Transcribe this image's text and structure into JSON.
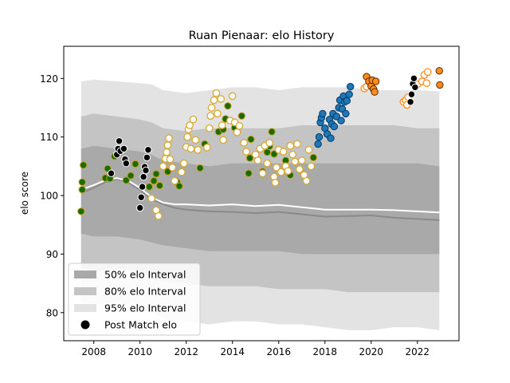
{
  "chart_data": {
    "type": "scatter",
    "title": "Ruan Pienaar: elo History",
    "xlabel": "",
    "ylabel": "elo score",
    "xlim": [
      2006.7,
      2023.8
    ],
    "ylim": [
      75.2,
      125.5
    ],
    "xticks": [
      2008,
      2010,
      2012,
      2014,
      2016,
      2018,
      2020,
      2022
    ],
    "yticks": [
      80,
      90,
      100,
      110,
      120
    ],
    "grid": false,
    "legend": {
      "placement": "lower-left",
      "entries": [
        {
          "label": "50% elo Interval",
          "color": "#a9a9a9",
          "kind": "band"
        },
        {
          "label": "80% elo Interval",
          "color": "#c4c4c4",
          "kind": "band"
        },
        {
          "label": "95% elo Interval",
          "color": "#e3e3e3",
          "kind": "band"
        },
        {
          "label": "Post Match elo",
          "color": "#000000",
          "kind": "marker"
        }
      ]
    },
    "bands": {
      "x": [
        2007.45,
        2008.0,
        2009.0,
        2010.0,
        2010.5,
        2011.0,
        2012.0,
        2013.0,
        2014.0,
        2015.0,
        2016.0,
        2017.0,
        2018.0,
        2019.0,
        2020.0,
        2021.0,
        2022.0,
        2022.95
      ],
      "b95_upper": [
        119.5,
        119.8,
        119.5,
        119.2,
        119.0,
        118.0,
        117.5,
        118.0,
        118.5,
        118.5,
        118.0,
        118.5,
        118.5,
        118.5,
        118.0,
        118.0,
        118.0,
        117.8
      ],
      "b95_lower": [
        81.8,
        81.5,
        81.8,
        81.0,
        80.0,
        79.0,
        78.5,
        78.0,
        78.5,
        78.5,
        78.0,
        78.0,
        77.5,
        77.0,
        77.0,
        77.5,
        77.5,
        77.0
      ],
      "b80_upper": [
        113.5,
        114.0,
        113.5,
        113.0,
        112.5,
        111.5,
        111.0,
        111.5,
        111.5,
        111.5,
        111.5,
        112.0,
        112.0,
        112.0,
        112.0,
        112.0,
        111.5,
        111.5
      ],
      "b80_lower": [
        87.5,
        87.0,
        87.5,
        87.0,
        86.0,
        85.5,
        85.0,
        84.5,
        84.5,
        84.5,
        84.0,
        84.0,
        84.0,
        83.5,
        83.5,
        83.5,
        83.5,
        83.5
      ],
      "b50_upper": [
        108.0,
        108.5,
        108.0,
        107.5,
        107.0,
        106.0,
        105.5,
        105.0,
        105.5,
        105.5,
        105.5,
        105.5,
        105.5,
        105.5,
        105.5,
        105.5,
        105.5,
        105.0
      ],
      "b50_lower": [
        93.5,
        93.0,
        93.0,
        92.5,
        92.0,
        91.5,
        91.0,
        90.5,
        90.5,
        90.5,
        90.5,
        90.0,
        90.0,
        90.0,
        90.0,
        90.0,
        90.0,
        90.0
      ]
    },
    "median_line": {
      "color": "#8a8a8a",
      "x": [
        2007.45,
        2008.0,
        2008.5,
        2009.0,
        2009.5,
        2010.0,
        2010.5,
        2011.0,
        2011.5,
        2012.0,
        2013.0,
        2014.0,
        2015.0,
        2016.0,
        2017.0,
        2018.0,
        2019.0,
        2020.0,
        2021.0,
        2022.0,
        2022.95
      ],
      "y": [
        100.4,
        101.3,
        102.3,
        102.8,
        102.2,
        101.0,
        99.4,
        98.5,
        97.9,
        97.6,
        97.3,
        97.2,
        97.0,
        97.2,
        96.8,
        96.4,
        96.5,
        96.6,
        96.2,
        96.0,
        95.8
      ]
    },
    "mean_line": {
      "color": "#ffffff",
      "x": [
        2007.45,
        2008.0,
        2008.5,
        2009.0,
        2009.5,
        2010.0,
        2010.5,
        2011.0,
        2011.5,
        2012.0,
        2013.0,
        2014.0,
        2015.0,
        2016.0,
        2017.0,
        2018.0,
        2019.0,
        2020.0,
        2021.0,
        2022.0,
        2022.95
      ],
      "y": [
        101.0,
        101.8,
        102.6,
        103.0,
        102.5,
        101.3,
        99.7,
        98.8,
        98.5,
        98.5,
        98.3,
        98.5,
        98.2,
        98.4,
        98.0,
        97.6,
        97.6,
        97.6,
        97.5,
        97.3,
        97.1
      ]
    },
    "series": [
      {
        "fill": "#1a6b00",
        "edge": "#c9a227",
        "hollow": false,
        "points": [
          [
            2007.45,
            97.3
          ],
          [
            2007.5,
            101.0
          ],
          [
            2007.5,
            102.3
          ],
          [
            2007.55,
            105.2
          ],
          [
            2008.5,
            103.0
          ],
          [
            2008.6,
            104.6
          ],
          [
            2008.7,
            102.9
          ],
          [
            2008.9,
            106.7
          ],
          [
            2009.4,
            102.6
          ],
          [
            2009.6,
            103.4
          ],
          [
            2009.8,
            105.4
          ],
          [
            2010.4,
            101.5
          ],
          [
            2010.6,
            102.5
          ],
          [
            2010.7,
            103.7
          ],
          [
            2010.85,
            101.7
          ],
          [
            2011.2,
            104.1
          ],
          [
            2011.6,
            102.3
          ],
          [
            2011.7,
            101.6
          ],
          [
            2012.6,
            104.7
          ],
          [
            2012.8,
            108.8
          ],
          [
            2013.4,
            110.9
          ],
          [
            2013.6,
            111.3
          ],
          [
            2013.7,
            113.1
          ],
          [
            2013.8,
            115.3
          ],
          [
            2014.1,
            111.6
          ],
          [
            2014.4,
            113.6
          ],
          [
            2014.7,
            103.8
          ],
          [
            2014.75,
            106.4
          ],
          [
            2014.8,
            109.6
          ],
          [
            2015.3,
            104.1
          ],
          [
            2015.5,
            107.4
          ],
          [
            2015.6,
            108.4
          ],
          [
            2015.7,
            110.9
          ],
          [
            2015.8,
            107.1
          ],
          [
            2016.3,
            106.0
          ],
          [
            2016.5,
            103.5
          ],
          [
            2017.5,
            106.5
          ]
        ]
      },
      {
        "fill": "#ffffff",
        "edge": "#d9a930",
        "hollow": true,
        "points": [
          [
            2010.5,
            99.5
          ],
          [
            2010.7,
            97.5
          ],
          [
            2010.8,
            96.5
          ],
          [
            2011.0,
            105.0
          ],
          [
            2011.1,
            106.3
          ],
          [
            2011.15,
            107.4
          ],
          [
            2011.2,
            108.6
          ],
          [
            2011.25,
            109.8
          ],
          [
            2011.3,
            106.2
          ],
          [
            2011.4,
            104.8
          ],
          [
            2011.5,
            102.5
          ],
          [
            2011.8,
            104.0
          ],
          [
            2011.9,
            105.5
          ],
          [
            2012.0,
            108.3
          ],
          [
            2012.05,
            110.0
          ],
          [
            2012.1,
            111.3
          ],
          [
            2012.15,
            112.0
          ],
          [
            2012.2,
            108.0
          ],
          [
            2012.3,
            113.0
          ],
          [
            2012.4,
            109.5
          ],
          [
            2012.5,
            107.8
          ],
          [
            2012.9,
            108.2
          ],
          [
            2013.0,
            111.5
          ],
          [
            2013.05,
            113.6
          ],
          [
            2013.1,
            115.0
          ],
          [
            2013.2,
            116.3
          ],
          [
            2013.3,
            117.5
          ],
          [
            2013.35,
            114.0
          ],
          [
            2013.5,
            116.5
          ],
          [
            2013.55,
            112.0
          ],
          [
            2013.6,
            109.5
          ],
          [
            2013.9,
            112.8
          ],
          [
            2014.0,
            117.0
          ],
          [
            2014.1,
            112.5
          ],
          [
            2014.2,
            110.8
          ],
          [
            2014.3,
            111.9
          ],
          [
            2014.5,
            109.0
          ],
          [
            2014.6,
            107.5
          ],
          [
            2015.0,
            107.0
          ],
          [
            2015.1,
            106.0
          ],
          [
            2015.2,
            108.0
          ],
          [
            2015.3,
            103.8
          ],
          [
            2015.4,
            108.5
          ],
          [
            2015.5,
            105.5
          ],
          [
            2015.6,
            109.0
          ],
          [
            2015.8,
            103.2
          ],
          [
            2015.85,
            102.2
          ],
          [
            2015.9,
            104.8
          ],
          [
            2016.0,
            107.8
          ],
          [
            2016.1,
            104.0
          ],
          [
            2016.2,
            107.5
          ],
          [
            2016.3,
            105.0
          ],
          [
            2016.4,
            104.2
          ],
          [
            2016.5,
            108.5
          ],
          [
            2016.6,
            107.0
          ],
          [
            2016.7,
            105.8
          ],
          [
            2016.8,
            108.8
          ],
          [
            2016.9,
            104.5
          ],
          [
            2017.0,
            106.0
          ],
          [
            2017.1,
            103.5
          ],
          [
            2017.2,
            102.5
          ],
          [
            2017.3,
            107.8
          ],
          [
            2017.4,
            105.0
          ]
        ]
      },
      {
        "fill": "#1f77b4",
        "edge": "#063a6a",
        "hollow": false,
        "points": [
          [
            2017.7,
            108.8
          ],
          [
            2017.75,
            110.0
          ],
          [
            2017.8,
            112.5
          ],
          [
            2017.85,
            113.3
          ],
          [
            2017.9,
            114.0
          ],
          [
            2018.0,
            111.5
          ],
          [
            2018.1,
            110.5
          ],
          [
            2018.2,
            113.0
          ],
          [
            2018.25,
            109.8
          ],
          [
            2018.3,
            112.2
          ],
          [
            2018.35,
            114.0
          ],
          [
            2018.4,
            111.8
          ],
          [
            2018.5,
            113.5
          ],
          [
            2018.6,
            115.0
          ],
          [
            2018.65,
            116.3
          ],
          [
            2018.7,
            112.8
          ],
          [
            2018.75,
            114.8
          ],
          [
            2018.8,
            117.0
          ],
          [
            2018.85,
            116.0
          ],
          [
            2018.9,
            114.0
          ],
          [
            2018.95,
            116.2
          ],
          [
            2019.05,
            117.3
          ],
          [
            2019.1,
            118.6
          ]
        ]
      },
      {
        "fill": "#ffffff",
        "edge": "#ff8c1a",
        "hollow": true,
        "points": [
          [
            2019.7,
            118.3
          ],
          [
            2019.8,
            118.6
          ],
          [
            2021.4,
            116.0
          ],
          [
            2021.5,
            116.3
          ],
          [
            2021.55,
            115.5
          ],
          [
            2021.6,
            116.8
          ],
          [
            2022.0,
            119.0
          ],
          [
            2022.2,
            119.5
          ],
          [
            2022.3,
            120.6
          ],
          [
            2022.4,
            119.2
          ],
          [
            2022.45,
            121.1
          ]
        ]
      },
      {
        "fill": "#ff8c1a",
        "edge": "#5a2a00",
        "hollow": false,
        "points": [
          [
            2019.8,
            120.3
          ],
          [
            2019.9,
            119.5
          ],
          [
            2020.0,
            118.7
          ],
          [
            2020.05,
            119.7
          ],
          [
            2020.1,
            118.2
          ],
          [
            2020.15,
            117.7
          ],
          [
            2020.2,
            119.5
          ],
          [
            2022.95,
            121.3
          ],
          [
            2022.97,
            118.9
          ]
        ]
      },
      {
        "fill": "#000000",
        "edge": "#ffffff",
        "hollow": false,
        "points": [
          [
            2008.75,
            103.8
          ],
          [
            2009.0,
            107.0
          ],
          [
            2009.05,
            108.0
          ],
          [
            2009.1,
            109.3
          ],
          [
            2009.15,
            107.6
          ],
          [
            2009.3,
            108.0
          ],
          [
            2009.35,
            106.2
          ],
          [
            2009.4,
            105.5
          ],
          [
            2010.0,
            97.9
          ],
          [
            2010.05,
            99.7
          ],
          [
            2010.1,
            101.5
          ],
          [
            2010.15,
            103.2
          ],
          [
            2010.2,
            104.9
          ],
          [
            2010.25,
            104.3
          ],
          [
            2010.3,
            106.5
          ],
          [
            2010.35,
            107.8
          ],
          [
            2021.7,
            116.0
          ],
          [
            2021.75,
            117.3
          ],
          [
            2021.8,
            119.1
          ],
          [
            2021.85,
            120.0
          ],
          [
            2021.9,
            118.5
          ]
        ]
      }
    ]
  }
}
